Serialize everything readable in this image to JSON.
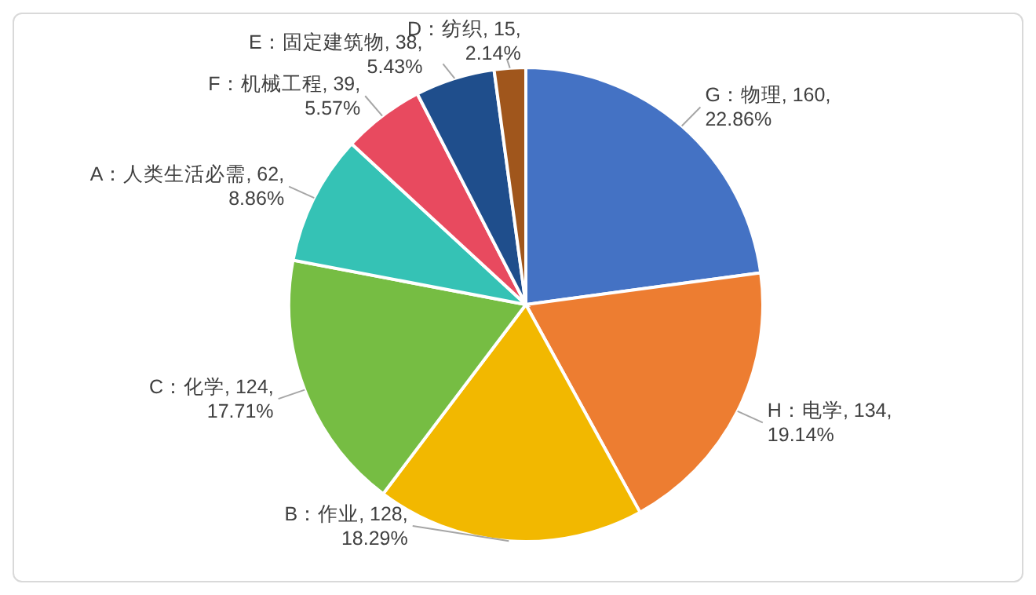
{
  "chart_data": {
    "type": "pie",
    "categories": [
      "G：物理",
      "H：电学",
      "B：作业",
      "C：化学",
      "A：人类生活必需",
      "F：机械工程",
      "E：固定建筑物",
      "D：纺织"
    ],
    "values": [
      160,
      134,
      128,
      124,
      62,
      39,
      38,
      15
    ],
    "value_labels": [
      "160, 22.86%",
      "134, 19.14%",
      "128, 18.29%",
      "124, 17.71%",
      "62, 8.86%",
      "39, 5.57%",
      "38, 5.43%",
      "15, 2.14%"
    ],
    "colors": [
      "#4472c4",
      "#ed7d31",
      "#f2b800",
      "#76bd43",
      "#35c2b5",
      "#e84a5f",
      "#1f4e8c",
      "#a0561c"
    ],
    "legend": false
  }
}
